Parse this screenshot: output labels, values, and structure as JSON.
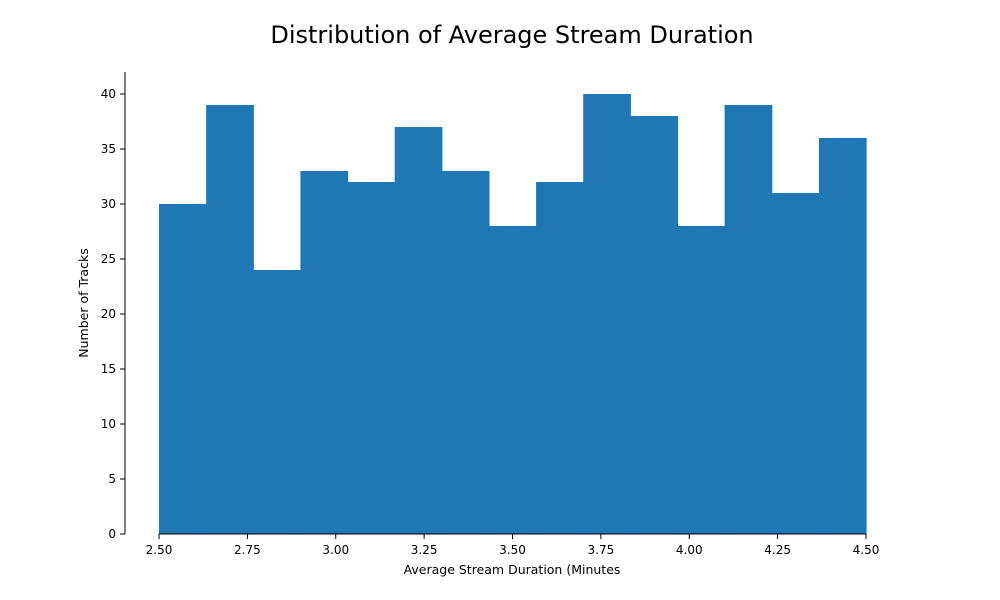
{
  "chart_data": {
    "type": "bar",
    "title": "Distribution of Average Stream Duration",
    "xlabel": "Average Stream Duration (Minutes",
    "ylabel": "Number of Tracks",
    "color": "#1f77b4",
    "bin_edges": [
      2.5,
      2.6333,
      2.7667,
      2.9,
      3.0333,
      3.1667,
      3.3,
      3.4333,
      3.5667,
      3.7,
      3.8333,
      3.9667,
      4.1,
      4.2333,
      4.3667,
      4.5
    ],
    "values": [
      30,
      39,
      24,
      33,
      32,
      37,
      33,
      28,
      32,
      40,
      38,
      28,
      39,
      31,
      36
    ],
    "xlim": [
      2.445,
      4.5
    ],
    "ylim": [
      0,
      42
    ],
    "xticks": [
      "2.50",
      "2.75",
      "3.00",
      "3.25",
      "3.50",
      "3.75",
      "4.00",
      "4.25",
      "4.50"
    ],
    "yticks": [
      "0",
      "5",
      "10",
      "15",
      "20",
      "25",
      "30",
      "35",
      "40"
    ],
    "grid": false,
    "legend": "none"
  }
}
